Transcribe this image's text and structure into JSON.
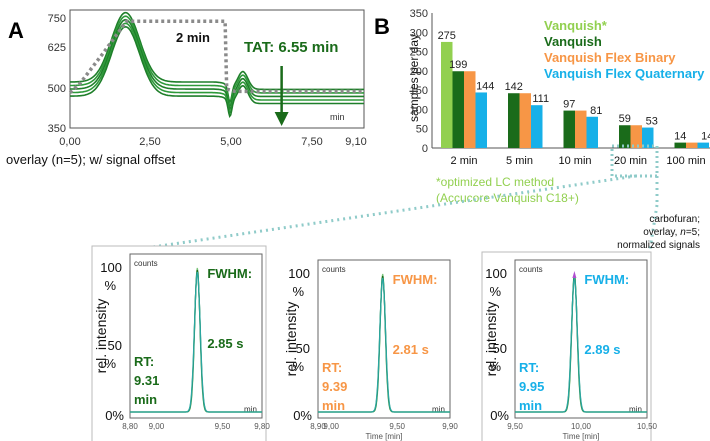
{
  "colors": {
    "dark_green": "#1a6b1a",
    "light_green": "#92d050",
    "orange": "#f79646",
    "cyan": "#17b0e8",
    "dotted": "#8a8a8a",
    "teal_dots": "#8fcbc9",
    "axis": "#555555",
    "trace_green": "#2e9a3a",
    "trace_light": "#7ec87e"
  },
  "panel_a": {
    "letter": "A",
    "caption": "overlay (n=5); w/ signal offset",
    "segment_label": "2 min",
    "tat_label": "TAT:  6.55 min",
    "unit_label": "min",
    "chart_data": {
      "type": "line",
      "xlim": [
        0,
        9.1
      ],
      "ylim": [
        350,
        750
      ],
      "x_ticks": [
        "0,00",
        "2,50",
        "5,00",
        "7,50",
        "9,10"
      ],
      "y_ticks": [
        "350",
        "500",
        "625",
        "750"
      ],
      "xlabel": "",
      "ylabel": "",
      "gradient_x": [
        0,
        0.3,
        1.0,
        1.75,
        3.5,
        4.8,
        4.85,
        5.1,
        9.1
      ],
      "gradient_y": [
        470,
        500,
        600,
        712,
        712,
        712,
        482,
        474,
        474
      ],
      "tat_marker_x": 6.55,
      "n_overlays": 5
    }
  },
  "panel_b": {
    "letter": "B",
    "ylabel": "samples per day",
    "footnote_line1": "*optimized LC method",
    "footnote_line2": "(Accucore Vanquish C18+)",
    "chart_data": {
      "type": "bar",
      "categories": [
        "2 min",
        "5 min",
        "10 min",
        "20 min",
        "100 min"
      ],
      "ylim": [
        0,
        350
      ],
      "y_ticks": [
        0,
        50,
        100,
        150,
        200,
        250,
        300,
        350
      ],
      "series": [
        {
          "name": "Vanquish*",
          "values": [
            275,
            null,
            null,
            null,
            null
          ],
          "labels": [
            "275",
            "",
            "",
            "",
            ""
          ]
        },
        {
          "name": "Vanquish",
          "values": [
            199,
            142,
            97,
            59,
            14
          ],
          "labels": [
            "199",
            "142",
            "97",
            "59",
            "14"
          ]
        },
        {
          "name": "Vanquish Flex Binary",
          "values": [
            199,
            142,
            97,
            59,
            14
          ],
          "labels": [
            "",
            "",
            "",
            "",
            ""
          ]
        },
        {
          "name": "Vanquish Flex Quaternary",
          "values": [
            144,
            111,
            81,
            53,
            14
          ],
          "labels": [
            "144",
            "111",
            "81",
            "53",
            "14"
          ]
        }
      ],
      "legend_position": "top-right"
    }
  },
  "annotation": {
    "line1": "carbofuran;",
    "line2a": "overlay, ",
    "line2b": "n",
    "line2c": "=5;",
    "line3": "normalized signals"
  },
  "peak_panels": [
    {
      "ylabel": "rel. intensity",
      "counts_label": "counts",
      "unit_label": "min",
      "time_label": "",
      "y_ticks": [
        "100 %",
        "50 %",
        "0%"
      ],
      "fwhm_label": "FWHM:",
      "fwhm_value": "2.85 s",
      "rt_label": "RT:",
      "rt_value": "9.31",
      "rt_unit": "min",
      "chart_data": {
        "type": "line",
        "xlim": [
          8.8,
          9.8
        ],
        "x_ticks": [
          "8,80",
          "9,00",
          "9,50",
          "9,80"
        ],
        "peak_rt": 9.31,
        "fwhm_s": 2.85
      }
    },
    {
      "ylabel": "rel. intensity",
      "counts_label": "counts",
      "unit_label": "min",
      "time_label": "Time [min]",
      "y_ticks": [
        "100 %",
        "50 %",
        "0%"
      ],
      "fwhm_label": "FWHM:",
      "fwhm_value": "2.81 s",
      "rt_label": "RT:",
      "rt_value": "9.39",
      "rt_unit": "min",
      "chart_data": {
        "type": "line",
        "xlim": [
          8.9,
          9.9
        ],
        "x_ticks": [
          "8,90",
          "9,00",
          "9,50",
          "9,90"
        ],
        "peak_rt": 9.39,
        "fwhm_s": 2.81
      }
    },
    {
      "ylabel": "rel. intensity",
      "counts_label": "counts",
      "unit_label": "min",
      "time_label": "Time [min]",
      "y_ticks": [
        "100 %",
        "50 %",
        "0%"
      ],
      "fwhm_label": "FWHM:",
      "fwhm_value": "2.89 s",
      "rt_label": "RT:",
      "rt_value": "9.95",
      "rt_unit": "min",
      "chart_data": {
        "type": "line",
        "xlim": [
          9.5,
          10.5
        ],
        "x_ticks": [
          "9,50",
          "10,00",
          "10,50"
        ],
        "peak_rt": 9.95,
        "fwhm_s": 2.89
      }
    }
  ]
}
